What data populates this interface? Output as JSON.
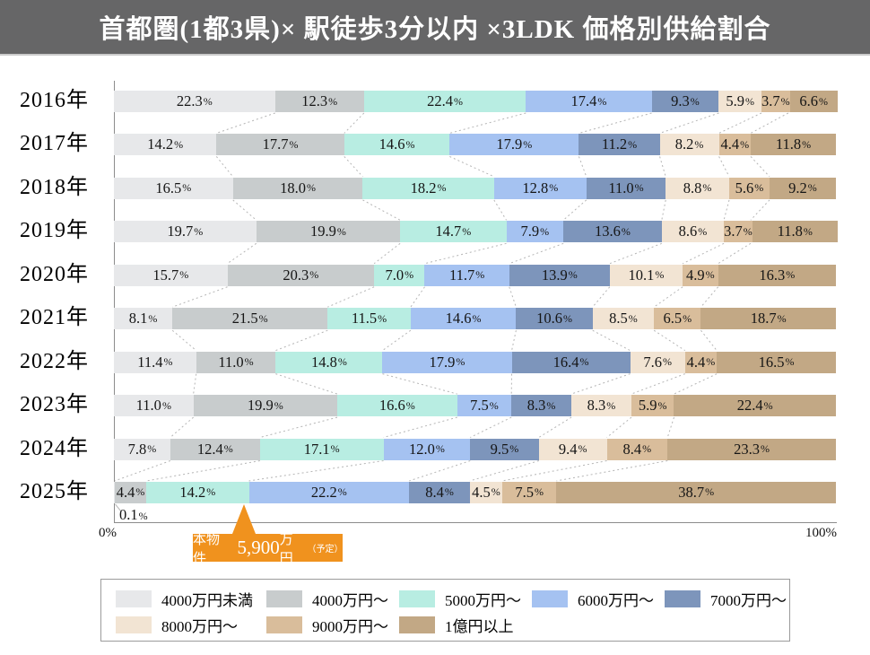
{
  "header": {
    "title": "首都圏(1都3県)× 駅徒歩3分以内 ×3LDK 価格別供給割合",
    "bar_color": "#666667"
  },
  "axis": {
    "left_label": "0%",
    "right_label": "100%"
  },
  "callout": {
    "label": "本物件",
    "price": "5,900",
    "unit": "万円",
    "note": "（予定）",
    "color": "#f0921e",
    "arrow_at_percent": 18.0
  },
  "chart_data": {
    "type": "bar",
    "stacked": true,
    "orientation": "horizontal",
    "value_unit": "%",
    "xlim": [
      0,
      100
    ],
    "categories": [
      "2016年",
      "2017年",
      "2018年",
      "2019年",
      "2020年",
      "2021年",
      "2022年",
      "2023年",
      "2024年",
      "2025年"
    ],
    "series": [
      {
        "name": "4000万円未満",
        "color": "#e7e8ea",
        "values": [
          22.3,
          14.2,
          16.5,
          19.7,
          15.7,
          8.1,
          11.4,
          11.0,
          7.8,
          0.1
        ]
      },
      {
        "name": "4000万円～",
        "color": "#c8cccd",
        "values": [
          12.3,
          17.7,
          18.0,
          19.9,
          20.3,
          21.5,
          11.0,
          19.9,
          12.4,
          4.4
        ]
      },
      {
        "name": "5000万円～",
        "color": "#b8ede2",
        "values": [
          22.4,
          14.6,
          18.2,
          14.7,
          7.0,
          11.5,
          14.8,
          16.6,
          17.1,
          14.2
        ]
      },
      {
        "name": "6000万円～",
        "color": "#a5c2f1",
        "values": [
          17.4,
          17.9,
          12.8,
          7.9,
          11.7,
          14.6,
          17.9,
          7.5,
          12.0,
          22.2
        ]
      },
      {
        "name": "7000万円～",
        "color": "#7d95bb",
        "values": [
          9.3,
          11.2,
          11.0,
          13.6,
          13.9,
          10.6,
          16.4,
          8.3,
          9.5,
          8.4
        ]
      },
      {
        "name": "8000万円～",
        "color": "#f2e4d3",
        "values": [
          5.9,
          8.2,
          8.8,
          8.6,
          10.1,
          8.5,
          7.6,
          8.3,
          9.4,
          4.5
        ]
      },
      {
        "name": "9000万円～",
        "color": "#d9bd9b",
        "values": [
          3.7,
          4.4,
          5.6,
          3.7,
          4.9,
          6.5,
          4.4,
          5.9,
          8.4,
          7.5
        ]
      },
      {
        "name": "1億円以上",
        "color": "#c2a885",
        "values": [
          6.6,
          11.8,
          9.2,
          11.8,
          16.3,
          18.7,
          16.5,
          22.4,
          23.3,
          38.7
        ]
      }
    ],
    "legend_position": "bottom",
    "connector_lines": true
  }
}
